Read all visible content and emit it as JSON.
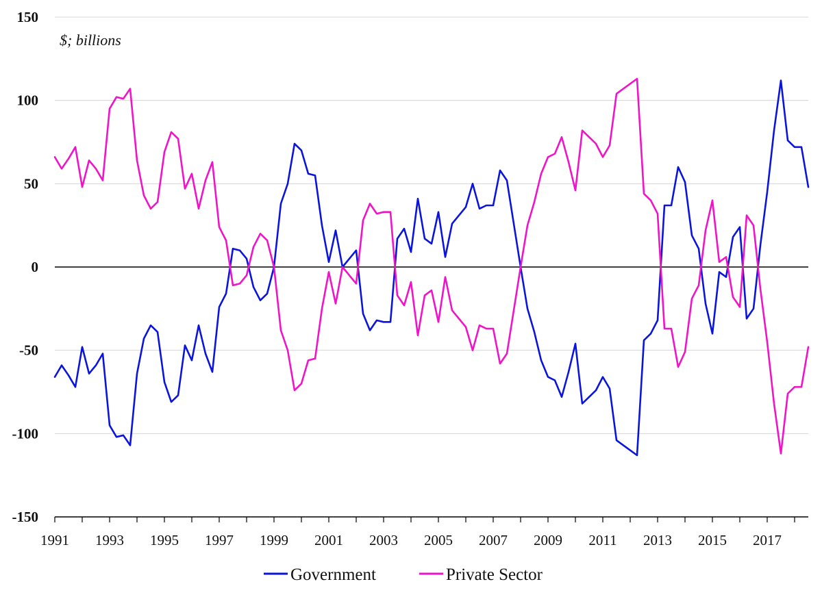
{
  "chart_data": {
    "type": "line",
    "unit_label": "$; billions",
    "ylim": [
      -150,
      150
    ],
    "yticks": [
      "150",
      "100",
      "50",
      "0",
      "-50",
      "-100",
      "-150"
    ],
    "ytick_values": [
      150,
      100,
      50,
      0,
      -50,
      -100,
      -150
    ],
    "xlim": [
      1991.0,
      2018.5
    ],
    "xticks": [
      "1991",
      "1993",
      "1995",
      "1997",
      "1999",
      "2001",
      "2003",
      "2005",
      "2007",
      "2009",
      "2011",
      "2013",
      "2015",
      "2017"
    ],
    "xtick_values": [
      1991,
      1993,
      1995,
      1997,
      1999,
      2001,
      2003,
      2005,
      2007,
      2009,
      2011,
      2013,
      2015,
      2017
    ],
    "grid": "horizontal",
    "legend_position": "bottom-center",
    "x": [
      1991.0,
      1991.25,
      1991.5,
      1991.75,
      1992.0,
      1992.25,
      1992.5,
      1992.75,
      1993.0,
      1993.25,
      1993.5,
      1993.75,
      1994.0,
      1994.25,
      1994.5,
      1994.75,
      1995.0,
      1995.25,
      1995.5,
      1995.75,
      1996.0,
      1996.25,
      1996.5,
      1996.75,
      1997.0,
      1997.25,
      1997.5,
      1997.75,
      1998.0,
      1998.25,
      1998.5,
      1998.75,
      1999.0,
      1999.25,
      1999.5,
      1999.75,
      2000.0,
      2000.25,
      2000.5,
      2000.75,
      2001.0,
      2001.25,
      2001.5,
      2001.75,
      2002.0,
      2002.25,
      2002.5,
      2002.75,
      2003.0,
      2003.25,
      2003.5,
      2003.75,
      2004.0,
      2004.25,
      2004.5,
      2004.75,
      2005.0,
      2005.25,
      2005.5,
      2005.75,
      2006.0,
      2006.25,
      2006.5,
      2006.75,
      2007.0,
      2007.25,
      2007.5,
      2007.75,
      2008.0,
      2008.25,
      2008.5,
      2008.75,
      2009.0,
      2009.25,
      2009.5,
      2009.75,
      2010.0,
      2010.25,
      2010.5,
      2010.75,
      2011.0,
      2011.25,
      2011.5,
      2011.75,
      2012.0,
      2012.25,
      2012.5,
      2012.75,
      2013.0,
      2013.25,
      2013.5,
      2013.75,
      2014.0,
      2014.25,
      2014.5,
      2014.75,
      2015.0,
      2015.25,
      2015.5,
      2015.75,
      2016.0,
      2016.25,
      2016.5,
      2016.75,
      2017.0,
      2017.25,
      2017.5,
      2017.75,
      2018.0,
      2018.25,
      2018.5
    ],
    "series": [
      {
        "name": "Government",
        "color": "#0a14dc",
        "values": [
          -66,
          -59,
          -65,
          -72,
          -48,
          -64,
          -59,
          -52,
          -95,
          -102,
          -101,
          -107,
          -64,
          -43,
          -35,
          -39,
          -69,
          -81,
          -77,
          -47,
          -56,
          -35,
          -52,
          -63,
          -24,
          -16,
          11,
          10,
          5,
          -12,
          -20,
          -16,
          0,
          38,
          50,
          74,
          70,
          56,
          55,
          25,
          3,
          22,
          0,
          5,
          10,
          -28,
          -38,
          -32,
          -33,
          -33,
          17,
          23,
          9,
          41,
          17,
          14,
          33,
          6,
          26,
          31,
          36,
          50,
          35,
          37,
          37,
          58,
          52,
          26,
          0,
          -25,
          -39,
          -56,
          -66,
          -68,
          -78,
          -63,
          -46,
          -82,
          -78,
          -74,
          -66,
          -73,
          -104,
          -107,
          -110,
          -113,
          -44,
          -40,
          -32,
          37,
          37,
          60,
          51,
          19,
          11,
          -22,
          -40,
          -3,
          -6,
          18,
          24,
          -31,
          -25,
          13,
          45,
          82,
          112,
          76,
          72,
          72,
          48
        ]
      },
      {
        "name": "Private Sector",
        "color": "#f014c8",
        "values": [
          66,
          59,
          65,
          72,
          48,
          64,
          59,
          52,
          95,
          102,
          101,
          107,
          64,
          43,
          35,
          39,
          69,
          81,
          77,
          47,
          56,
          35,
          52,
          63,
          24,
          16,
          -11,
          -10,
          -5,
          12,
          20,
          16,
          0,
          -38,
          -50,
          -74,
          -70,
          -56,
          -55,
          -25,
          -3,
          -22,
          0,
          -5,
          -10,
          28,
          38,
          32,
          33,
          33,
          -17,
          -23,
          -9,
          -41,
          -17,
          -14,
          -33,
          -6,
          -26,
          -31,
          -36,
          -50,
          -35,
          -37,
          -37,
          -58,
          -52,
          -26,
          0,
          25,
          39,
          56,
          66,
          68,
          78,
          63,
          46,
          82,
          78,
          74,
          66,
          73,
          104,
          107,
          110,
          113,
          44,
          40,
          32,
          -37,
          -37,
          -60,
          -51,
          -19,
          -11,
          22,
          40,
          3,
          6,
          -18,
          -24,
          31,
          25,
          -13,
          -45,
          -82,
          -112,
          -76,
          -72,
          -72,
          -48
        ]
      }
    ]
  }
}
